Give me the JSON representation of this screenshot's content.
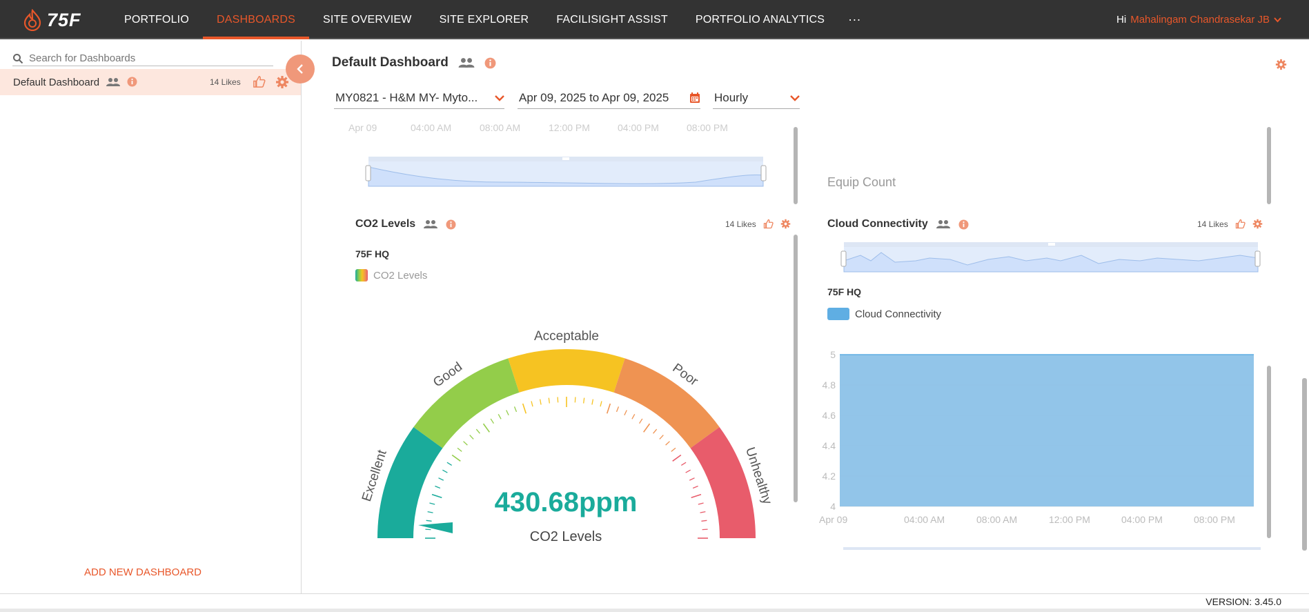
{
  "nav": {
    "logo_text": "75F",
    "items": [
      {
        "label": "PORTFOLIO"
      },
      {
        "label": "DASHBOARDS"
      },
      {
        "label": "SITE OVERVIEW"
      },
      {
        "label": "SITE EXPLORER"
      },
      {
        "label": "FACILISIGHT ASSIST"
      },
      {
        "label": "PORTFOLIO ANALYTICS"
      }
    ],
    "more": "···",
    "greeting": "Hi",
    "user_name": "Mahalingam Chandrasekar JB"
  },
  "sidebar": {
    "search_placeholder": "Search for Dashboards",
    "dashboard": {
      "name": "Default Dashboard",
      "likes": "14 Likes"
    },
    "add_label": "ADD NEW DASHBOARD"
  },
  "main": {
    "title": "Default Dashboard",
    "filters": {
      "site": "MY0821 - H&M MY- Myto...",
      "date_range": "Apr 09, 2025 to Apr 09, 2025",
      "frequency": "Hourly"
    }
  },
  "top_widget": {
    "x_ticks": [
      "Apr 09",
      "04:00 AM",
      "08:00 AM",
      "12:00 PM",
      "04:00 PM",
      "08:00 PM"
    ],
    "equip_count_label": "Equip Count"
  },
  "co2_widget": {
    "title": "CO2 Levels",
    "likes": "14 Likes",
    "site": "75F HQ",
    "legend": "CO2 Levels",
    "zones": [
      "Excellent",
      "Good",
      "Acceptable",
      "Poor",
      "Unhealthy"
    ],
    "zone_colors": [
      "#1aab9b",
      "#93cd4a",
      "#f6c322",
      "#ef9352",
      "#e85c6b"
    ],
    "value": "430.68ppm",
    "value_label": "CO2 Levels"
  },
  "cloud_widget": {
    "title": "Cloud Connectivity",
    "likes": "14 Likes",
    "site": "75F HQ",
    "legend": "Cloud Connectivity",
    "color": "#8cc2e8"
  },
  "chart_data": {
    "type": "area",
    "title": "Cloud Connectivity",
    "x": [
      "Apr 09",
      "04:00 AM",
      "08:00 AM",
      "12:00 PM",
      "04:00 PM",
      "08:00 PM"
    ],
    "series": [
      {
        "name": "Cloud Connectivity",
        "values": [
          5,
          5,
          5,
          5,
          5,
          5
        ]
      }
    ],
    "y_ticks": [
      "5",
      "4.8",
      "4.6",
      "4.4",
      "4.2",
      "4"
    ],
    "ylim": [
      4,
      5
    ],
    "grid": true
  },
  "footer": {
    "version": "VERSION: 3.45.0"
  }
}
